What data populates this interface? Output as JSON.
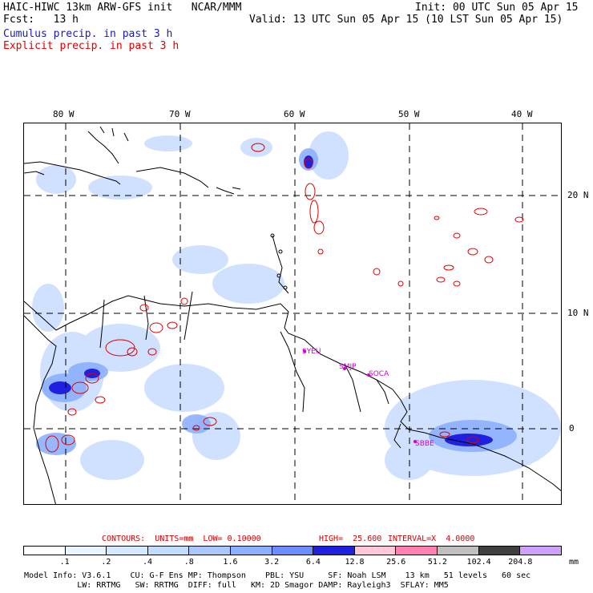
{
  "header": {
    "model": "HAIC-HIWC 13km ARW-GFS init   NCAR/MMM",
    "init": "Init: 00 UTC Sun 05 Apr 15",
    "fcst": "Fcst:   13 h",
    "valid": "Valid: 13 UTC Sun 05 Apr 15 (10 LST Sun 05 Apr 15)",
    "cumulus": "Cumulus precip. in past 3 h",
    "explicit": "Explicit precip. in past 3 h"
  },
  "colors": {
    "cumulus": "#1818c8",
    "explicit": "#e00000",
    "station": "#d000d0"
  },
  "lon_labels": [
    "80 W",
    "70 W",
    "60 W",
    "50 W",
    "40 W"
  ],
  "lat_labels": [
    "20 N",
    "10 N",
    "0"
  ],
  "stations": [
    "SYEU",
    "SMJP",
    "SOCA",
    "SBBE"
  ],
  "contours": {
    "units": "CONTOURS:  UNITS=mm  LOW= 0.10000",
    "high": "HIGH=  25.600",
    "interval": "INTERVAL=X  4.0000"
  },
  "colorbar": {
    "ticks": [
      ".1",
      ".2",
      ".4",
      ".8",
      "1.6",
      "3.2",
      "6.4",
      "12.8",
      "25.6",
      "51.2",
      "102.4",
      "204.8"
    ],
    "unit": "mm",
    "colors": [
      "#ffffff",
      "#e8f4ff",
      "#d4e8ff",
      "#c0dcff",
      "#a8c8ff",
      "#8cb0ff",
      "#6c8cff",
      "#2020e0",
      "#ffc8d8",
      "#ff80b0",
      "#c0c0c0",
      "#404040",
      "#d0a0ff"
    ]
  },
  "model_info": {
    "line1": "Model Info: V3.6.1    CU: G-F Ens MP: Thompson    PBL: YSU     SF: Noah LSM    13 km   51 levels   60 sec",
    "line2": "           LW: RRTMG   SW: RRTMG  DIFF: full   KM: 2D Smagor DAMP: Rayleigh3  SFLAY: MM5"
  }
}
